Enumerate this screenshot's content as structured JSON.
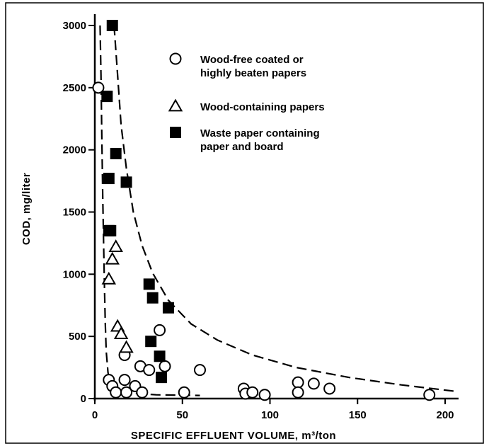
{
  "chart_data": {
    "type": "scatter",
    "xlabel": "SPECIFIC EFFLUENT VOLUME, m³/ton",
    "ylabel": "COD, mg/liter",
    "xlim": [
      0,
      210
    ],
    "ylim": [
      0,
      3100
    ],
    "xticks": [
      "0",
      "50",
      "100",
      "150",
      "200"
    ],
    "yticks": [
      "0",
      "500",
      "1000",
      "1500",
      "2000",
      "2500",
      "3000"
    ],
    "legend": {
      "placement": "top-right",
      "entries": [
        {
          "marker": "circle",
          "lines": [
            "Wood-free coated or",
            "highly beaten papers"
          ]
        },
        {
          "marker": "triangle",
          "lines": [
            "Wood-containing papers"
          ]
        },
        {
          "marker": "square",
          "lines": [
            "Waste paper containing",
            "paper and board"
          ]
        }
      ]
    },
    "series": [
      {
        "marker": "circle",
        "points": [
          [
            2,
            2500
          ],
          [
            8,
            150
          ],
          [
            10,
            100
          ],
          [
            12,
            50
          ],
          [
            17,
            150
          ],
          [
            17,
            350
          ],
          [
            18,
            50
          ],
          [
            23,
            100
          ],
          [
            26,
            260
          ],
          [
            27,
            50
          ],
          [
            31,
            230
          ],
          [
            37,
            550
          ],
          [
            40,
            260
          ],
          [
            51,
            50
          ],
          [
            60,
            230
          ],
          [
            85,
            80
          ],
          [
            86,
            40
          ],
          [
            90,
            50
          ],
          [
            97,
            30
          ],
          [
            116,
            130
          ],
          [
            116,
            50
          ],
          [
            125,
            120
          ],
          [
            134,
            80
          ],
          [
            191,
            30
          ]
        ]
      },
      {
        "marker": "triangle",
        "points": [
          [
            8,
            960
          ],
          [
            10,
            1120
          ],
          [
            12,
            1220
          ],
          [
            13,
            580
          ],
          [
            15,
            520
          ],
          [
            18,
            410
          ]
        ]
      },
      {
        "marker": "square",
        "points": [
          [
            7,
            2430
          ],
          [
            8,
            1770
          ],
          [
            8,
            1350
          ],
          [
            9,
            1350
          ],
          [
            10,
            3000
          ],
          [
            12,
            1970
          ],
          [
            18,
            1740
          ],
          [
            31,
            920
          ],
          [
            32,
            460
          ],
          [
            33,
            810
          ],
          [
            37,
            340
          ],
          [
            38,
            170
          ],
          [
            42,
            730
          ]
        ]
      }
    ],
    "curves": [
      {
        "style": "dashed",
        "points": [
          [
            11,
            3000
          ],
          [
            13,
            2600
          ],
          [
            15,
            2200
          ],
          [
            18,
            1850
          ],
          [
            22,
            1500
          ],
          [
            27,
            1230
          ],
          [
            33,
            1010
          ],
          [
            42,
            790
          ],
          [
            55,
            600
          ],
          [
            70,
            470
          ],
          [
            90,
            350
          ],
          [
            115,
            250
          ],
          [
            145,
            170
          ],
          [
            175,
            110
          ],
          [
            205,
            60
          ]
        ]
      },
      {
        "style": "dashed",
        "points": [
          [
            3,
            3000
          ],
          [
            3.5,
            2600
          ],
          [
            4,
            2100
          ],
          [
            4.5,
            1650
          ],
          [
            5,
            1250
          ],
          [
            5.5,
            900
          ],
          [
            6,
            600
          ],
          [
            6.5,
            380
          ],
          [
            7.5,
            210
          ],
          [
            9,
            120
          ],
          [
            13,
            70
          ],
          [
            20,
            45
          ],
          [
            35,
            30
          ],
          [
            60,
            25
          ]
        ]
      }
    ]
  }
}
